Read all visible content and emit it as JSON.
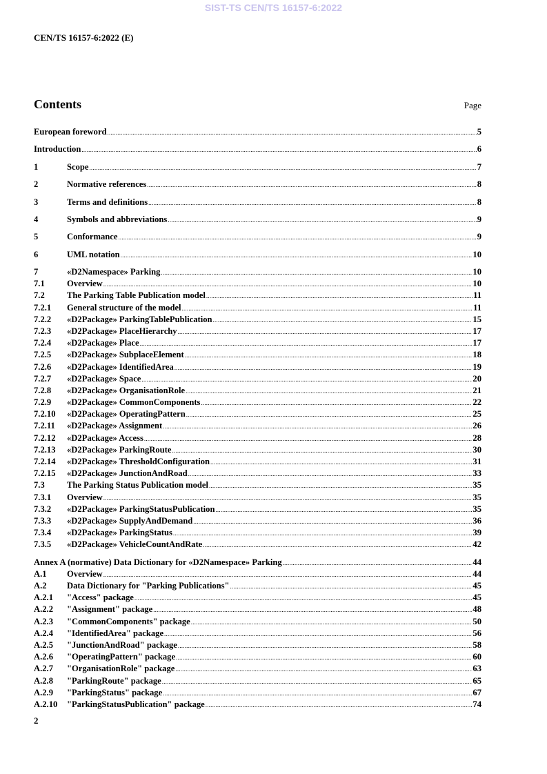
{
  "watermark": "SIST-TS CEN/TS 16157-6:2022",
  "header": {
    "doc_id": "CEN/TS 16157-6:2022 (E)"
  },
  "contents": {
    "title": "Contents",
    "page_label": "Page",
    "groups": [
      [
        {
          "num": "",
          "title": "European foreword",
          "page": "5"
        }
      ],
      [
        {
          "num": "",
          "title": "Introduction",
          "page": "6"
        }
      ],
      [
        {
          "num": "1",
          "title": "Scope",
          "page": "7"
        }
      ],
      [
        {
          "num": "2",
          "title": "Normative references",
          "page": "8"
        }
      ],
      [
        {
          "num": "3",
          "title": "Terms and definitions",
          "page": "8"
        }
      ],
      [
        {
          "num": "4",
          "title": "Symbols and abbreviations",
          "page": "9"
        }
      ],
      [
        {
          "num": "5",
          "title": "Conformance",
          "page": "9"
        }
      ],
      [
        {
          "num": "6",
          "title": "UML notation",
          "page": "10"
        }
      ],
      [
        {
          "num": "7",
          "title": "«D2Namespace» Parking",
          "page": "10"
        },
        {
          "num": "7.1",
          "title": "Overview",
          "page": "10"
        },
        {
          "num": "7.2",
          "title": "The Parking Table Publication model",
          "page": "11"
        },
        {
          "num": "7.2.1",
          "title": "General structure of the model",
          "page": "11"
        },
        {
          "num": "7.2.2",
          "title": "«D2Package» ParkingTablePublication",
          "page": "15"
        },
        {
          "num": "7.2.3",
          "title": "«D2Package» PlaceHierarchy",
          "page": "17"
        },
        {
          "num": "7.2.4",
          "title": "«D2Package» Place",
          "page": "17"
        },
        {
          "num": "7.2.5",
          "title": "«D2Package» SubplaceElement",
          "page": "18"
        },
        {
          "num": "7.2.6",
          "title": "«D2Package» IdentifiedArea",
          "page": "19"
        },
        {
          "num": "7.2.7",
          "title": "«D2Package» Space",
          "page": "20"
        },
        {
          "num": "7.2.8",
          "title": "«D2Package» OrganisationRole",
          "page": "21"
        },
        {
          "num": "7.2.9",
          "title": "«D2Package» CommonComponents",
          "page": "22"
        },
        {
          "num": "7.2.10",
          "title": "«D2Package» OperatingPattern",
          "page": "25"
        },
        {
          "num": "7.2.11",
          "title": "«D2Package» Assignment",
          "page": "26"
        },
        {
          "num": "7.2.12",
          "title": "«D2Package» Access",
          "page": "28"
        },
        {
          "num": "7.2.13",
          "title": "«D2Package» ParkingRoute",
          "page": "30"
        },
        {
          "num": "7.2.14",
          "title": "«D2Package» ThresholdConfiguration",
          "page": "31"
        },
        {
          "num": "7.2.15",
          "title": "«D2Package» JunctionAndRoad",
          "page": "33"
        },
        {
          "num": "7.3",
          "title": "The Parking Status Publication model",
          "page": "35"
        },
        {
          "num": "7.3.1",
          "title": "Overview",
          "page": "35"
        },
        {
          "num": "7.3.2",
          "title": "«D2Package» ParkingStatusPublication",
          "page": "35"
        },
        {
          "num": "7.3.3",
          "title": "«D2Package» SupplyAndDemand",
          "page": "36"
        },
        {
          "num": "7.3.4",
          "title": "«D2Package» ParkingStatus",
          "page": "39"
        },
        {
          "num": "7.3.5",
          "title": "«D2Package» VehicleCountAndRate",
          "page": "42"
        }
      ],
      [
        {
          "num": "",
          "title": "Annex A (normative)  Data Dictionary for «D2Namespace» Parking",
          "page": "44"
        },
        {
          "num": "A.1",
          "title": "Overview",
          "page": "44"
        },
        {
          "num": "A.2",
          "title": "Data Dictionary for \"Parking Publications\"",
          "page": "45"
        },
        {
          "num": "A.2.1",
          "title": "\"Access\" package",
          "page": "45"
        },
        {
          "num": "A.2.2",
          "title": "\"Assignment\" package",
          "page": "48"
        },
        {
          "num": "A.2.3",
          "title": "\"CommonComponents\" package",
          "page": "50"
        },
        {
          "num": "A.2.4",
          "title": "\"IdentifiedArea\" package",
          "page": "56"
        },
        {
          "num": "A.2.5",
          "title": "\"JunctionAndRoad\" package",
          "page": "58"
        },
        {
          "num": "A.2.6",
          "title": "\"OperatingPattern\" package",
          "page": "60"
        },
        {
          "num": "A.2.7",
          "title": "\"OrganisationRole\" package",
          "page": "63"
        },
        {
          "num": "A.2.8",
          "title": "\"ParkingRoute\" package",
          "page": "65"
        },
        {
          "num": "A.2.9",
          "title": "\"ParkingStatus\" package",
          "page": "67"
        },
        {
          "num": "A.2.10",
          "title": "\"ParkingStatusPublication\" package",
          "page": "74"
        }
      ]
    ]
  },
  "footer": {
    "page_number": "2"
  }
}
